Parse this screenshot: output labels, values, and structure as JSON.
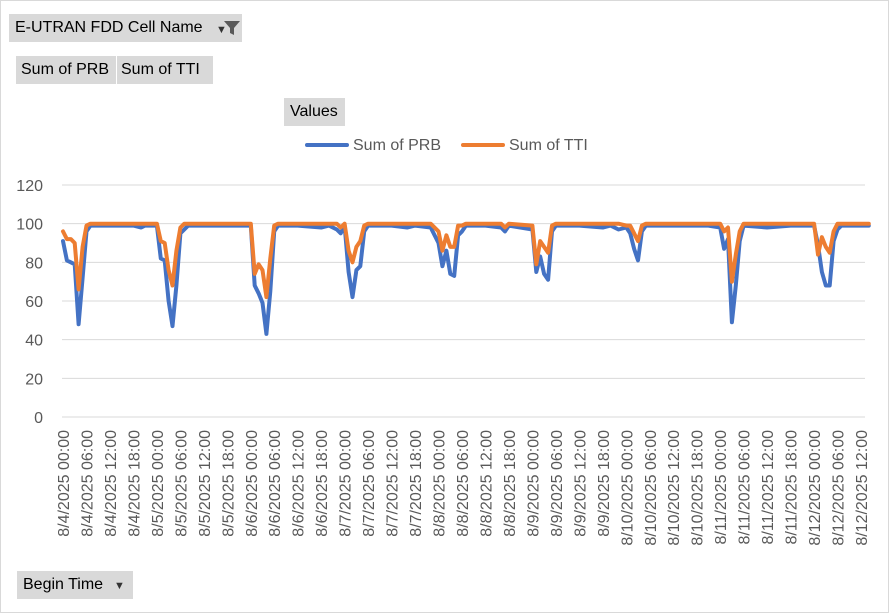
{
  "filter": {
    "field_label": "E-UTRAN FDD Cell Name"
  },
  "value_fields": [
    "Sum of PRB",
    "Sum of TTI"
  ],
  "values_label": "Values",
  "axis_field": {
    "label": "Begin Time"
  },
  "colors": {
    "prb": "#4472c4",
    "tti": "#ed7d31",
    "grid": "#d9d9d9",
    "button": "#d9d9d9"
  },
  "icons": {
    "filter": "funnel-icon",
    "dropdown": "dropdown-arrow-icon"
  },
  "chart_data": {
    "type": "line",
    "title": "",
    "xlabel": "",
    "ylabel": "",
    "ylim": [
      0,
      120
    ],
    "yticks": [
      0,
      20,
      40,
      60,
      80,
      100,
      120
    ],
    "grid": true,
    "legend": "top-center",
    "xtick_labels": [
      "8/4/2025 00:00",
      "8/4/2025 06:00",
      "8/4/2025 12:00",
      "8/4/2025 18:00",
      "8/5/2025 00:00",
      "8/5/2025 06:00",
      "8/5/2025 12:00",
      "8/5/2025 18:00",
      "8/6/2025 00:00",
      "8/6/2025 06:00",
      "8/6/2025 12:00",
      "8/6/2025 18:00",
      "8/7/2025 00:00",
      "8/7/2025 06:00",
      "8/7/2025 12:00",
      "8/7/2025 18:00",
      "8/8/2025 00:00",
      "8/8/2025 06:00",
      "8/8/2025 12:00",
      "8/8/2025 18:00",
      "8/9/2025 00:00",
      "8/9/2025 06:00",
      "8/9/2025 12:00",
      "8/9/2025 18:00",
      "8/10/2025 00:00",
      "8/10/2025 06:00",
      "8/10/2025 12:00",
      "8/10/2025 18:00",
      "8/11/2025 00:00",
      "8/11/2025 06:00",
      "8/11/2025 12:00",
      "8/11/2025 18:00",
      "8/12/2025 00:00",
      "8/12/2025 06:00",
      "8/12/2025 12:00"
    ],
    "series": [
      {
        "name": "Sum of PRB",
        "points": [
          [
            "8/4/2025 00:00",
            91
          ],
          [
            "8/4/2025 01:00",
            81
          ],
          [
            "8/4/2025 02:00",
            80
          ],
          [
            "8/4/2025 03:00",
            79
          ],
          [
            "8/4/2025 04:00",
            48
          ],
          [
            "8/4/2025 05:00",
            72
          ],
          [
            "8/4/2025 06:00",
            96
          ],
          [
            "8/4/2025 07:00",
            99
          ],
          [
            "8/4/2025 08:00",
            99
          ],
          [
            "8/4/2025 12:00",
            99
          ],
          [
            "8/4/2025 18:00",
            99
          ],
          [
            "8/4/2025 20:00",
            98
          ],
          [
            "8/4/2025 21:00",
            99
          ],
          [
            "8/5/2025 00:00",
            99
          ],
          [
            "8/5/2025 01:00",
            82
          ],
          [
            "8/5/2025 02:00",
            81
          ],
          [
            "8/5/2025 03:00",
            60
          ],
          [
            "8/5/2025 04:00",
            47
          ],
          [
            "8/5/2025 05:00",
            68
          ],
          [
            "8/5/2025 06:00",
            95
          ],
          [
            "8/5/2025 07:00",
            97
          ],
          [
            "8/5/2025 08:00",
            99
          ],
          [
            "8/5/2025 12:00",
            99
          ],
          [
            "8/5/2025 18:00",
            99
          ],
          [
            "8/5/2025 20:00",
            99
          ],
          [
            "8/6/2025 00:00",
            99
          ],
          [
            "8/6/2025 01:00",
            68
          ],
          [
            "8/6/2025 02:00",
            64
          ],
          [
            "8/6/2025 03:00",
            59
          ],
          [
            "8/6/2025 04:00",
            43
          ],
          [
            "8/6/2025 05:00",
            65
          ],
          [
            "8/6/2025 06:00",
            96
          ],
          [
            "8/6/2025 07:00",
            99
          ],
          [
            "8/6/2025 12:00",
            99
          ],
          [
            "8/6/2025 18:00",
            98
          ],
          [
            "8/6/2025 20:00",
            99
          ],
          [
            "8/6/2025 22:00",
            97
          ],
          [
            "8/6/2025 23:00",
            95
          ],
          [
            "8/7/2025 00:00",
            99
          ],
          [
            "8/7/2025 01:00",
            75
          ],
          [
            "8/7/2025 02:00",
            62
          ],
          [
            "8/7/2025 03:00",
            76
          ],
          [
            "8/7/2025 04:00",
            78
          ],
          [
            "8/7/2025 05:00",
            96
          ],
          [
            "8/7/2025 06:00",
            99
          ],
          [
            "8/7/2025 12:00",
            99
          ],
          [
            "8/7/2025 16:00",
            98
          ],
          [
            "8/7/2025 18:00",
            99
          ],
          [
            "8/7/2025 22:00",
            98
          ],
          [
            "8/8/2025 00:00",
            90
          ],
          [
            "8/8/2025 01:00",
            78
          ],
          [
            "8/8/2025 02:00",
            86
          ],
          [
            "8/8/2025 03:00",
            74
          ],
          [
            "8/8/2025 04:00",
            73
          ],
          [
            "8/8/2025 05:00",
            94
          ],
          [
            "8/8/2025 06:00",
            96
          ],
          [
            "8/8/2025 07:00",
            99
          ],
          [
            "8/8/2025 12:00",
            99
          ],
          [
            "8/8/2025 16:00",
            98
          ],
          [
            "8/8/2025 17:00",
            96
          ],
          [
            "8/8/2025 18:00",
            99
          ],
          [
            "8/9/2025 00:00",
            97
          ],
          [
            "8/9/2025 01:00",
            75
          ],
          [
            "8/9/2025 02:00",
            83
          ],
          [
            "8/9/2025 03:00",
            74
          ],
          [
            "8/9/2025 04:00",
            71
          ],
          [
            "8/9/2025 05:00",
            96
          ],
          [
            "8/9/2025 06:00",
            99
          ],
          [
            "8/9/2025 12:00",
            99
          ],
          [
            "8/9/2025 18:00",
            98
          ],
          [
            "8/9/2025 20:00",
            99
          ],
          [
            "8/9/2025 22:00",
            97
          ],
          [
            "8/10/2025 00:00",
            98
          ],
          [
            "8/10/2025 01:00",
            95
          ],
          [
            "8/10/2025 02:00",
            87
          ],
          [
            "8/10/2025 03:00",
            81
          ],
          [
            "8/10/2025 04:00",
            96
          ],
          [
            "8/10/2025 05:00",
            99
          ],
          [
            "8/10/2025 12:00",
            99
          ],
          [
            "8/10/2025 18:00",
            99
          ],
          [
            "8/10/2025 21:00",
            99
          ],
          [
            "8/11/2025 00:00",
            98
          ],
          [
            "8/11/2025 01:00",
            87
          ],
          [
            "8/11/2025 02:00",
            92
          ],
          [
            "8/11/2025 03:00",
            49
          ],
          [
            "8/11/2025 04:00",
            68
          ],
          [
            "8/11/2025 05:00",
            91
          ],
          [
            "8/11/2025 06:00",
            99
          ],
          [
            "8/11/2025 12:00",
            98
          ],
          [
            "8/11/2025 18:00",
            99
          ],
          [
            "8/11/2025 22:00",
            99
          ],
          [
            "8/12/2025 00:00",
            99
          ],
          [
            "8/12/2025 01:00",
            89
          ],
          [
            "8/12/2025 02:00",
            75
          ],
          [
            "8/12/2025 03:00",
            68
          ],
          [
            "8/12/2025 04:00",
            68
          ],
          [
            "8/12/2025 05:00",
            91
          ],
          [
            "8/12/2025 06:00",
            97
          ],
          [
            "8/12/2025 07:00",
            99
          ],
          [
            "8/12/2025 12:00",
            99
          ],
          [
            "8/12/2025 14:00",
            99
          ]
        ]
      },
      {
        "name": "Sum of TTI",
        "points": [
          [
            "8/4/2025 00:00",
            96
          ],
          [
            "8/4/2025 01:00",
            92
          ],
          [
            "8/4/2025 02:00",
            92
          ],
          [
            "8/4/2025 03:00",
            90
          ],
          [
            "8/4/2025 04:00",
            66
          ],
          [
            "8/4/2025 05:00",
            88
          ],
          [
            "8/4/2025 06:00",
            99
          ],
          [
            "8/4/2025 07:00",
            100
          ],
          [
            "8/4/2025 12:00",
            100
          ],
          [
            "8/4/2025 18:00",
            100
          ],
          [
            "8/4/2025 21:00",
            100
          ],
          [
            "8/5/2025 00:00",
            100
          ],
          [
            "8/5/2025 01:00",
            91
          ],
          [
            "8/5/2025 02:00",
            90
          ],
          [
            "8/5/2025 03:00",
            76
          ],
          [
            "8/5/2025 04:00",
            68
          ],
          [
            "8/5/2025 05:00",
            86
          ],
          [
            "8/5/2025 06:00",
            98
          ],
          [
            "8/5/2025 07:00",
            100
          ],
          [
            "8/5/2025 12:00",
            100
          ],
          [
            "8/5/2025 18:00",
            100
          ],
          [
            "8/5/2025 20:00",
            100
          ],
          [
            "8/6/2025 00:00",
            100
          ],
          [
            "8/6/2025 01:00",
            74
          ],
          [
            "8/6/2025 02:00",
            79
          ],
          [
            "8/6/2025 03:00",
            76
          ],
          [
            "8/6/2025 04:00",
            62
          ],
          [
            "8/6/2025 05:00",
            82
          ],
          [
            "8/6/2025 06:00",
            99
          ],
          [
            "8/6/2025 07:00",
            100
          ],
          [
            "8/6/2025 12:00",
            100
          ],
          [
            "8/6/2025 18:00",
            100
          ],
          [
            "8/6/2025 22:00",
            100
          ],
          [
            "8/6/2025 23:00",
            98
          ],
          [
            "8/7/2025 00:00",
            100
          ],
          [
            "8/7/2025 01:00",
            86
          ],
          [
            "8/7/2025 02:00",
            80
          ],
          [
            "8/7/2025 03:00",
            88
          ],
          [
            "8/7/2025 04:00",
            91
          ],
          [
            "8/7/2025 05:00",
            99
          ],
          [
            "8/7/2025 06:00",
            100
          ],
          [
            "8/7/2025 12:00",
            100
          ],
          [
            "8/7/2025 18:00",
            100
          ],
          [
            "8/7/2025 22:00",
            100
          ],
          [
            "8/8/2025 00:00",
            96
          ],
          [
            "8/8/2025 01:00",
            86
          ],
          [
            "8/8/2025 02:00",
            94
          ],
          [
            "8/8/2025 03:00",
            88
          ],
          [
            "8/8/2025 04:00",
            88
          ],
          [
            "8/8/2025 05:00",
            99
          ],
          [
            "8/8/2025 06:00",
            99
          ],
          [
            "8/8/2025 07:00",
            100
          ],
          [
            "8/8/2025 12:00",
            100
          ],
          [
            "8/8/2025 16:00",
            100
          ],
          [
            "8/8/2025 17:00",
            98
          ],
          [
            "8/8/2025 18:00",
            100
          ],
          [
            "8/9/2025 00:00",
            99
          ],
          [
            "8/9/2025 01:00",
            79
          ],
          [
            "8/9/2025 02:00",
            91
          ],
          [
            "8/9/2025 03:00",
            88
          ],
          [
            "8/9/2025 04:00",
            85
          ],
          [
            "8/9/2025 05:00",
            99
          ],
          [
            "8/9/2025 06:00",
            100
          ],
          [
            "8/9/2025 12:00",
            100
          ],
          [
            "8/9/2025 18:00",
            100
          ],
          [
            "8/9/2025 22:00",
            100
          ],
          [
            "8/10/2025 00:00",
            99
          ],
          [
            "8/10/2025 01:00",
            99
          ],
          [
            "8/10/2025 02:00",
            95
          ],
          [
            "8/10/2025 03:00",
            91
          ],
          [
            "8/10/2025 04:00",
            99
          ],
          [
            "8/10/2025 05:00",
            100
          ],
          [
            "8/10/2025 12:00",
            100
          ],
          [
            "8/10/2025 18:00",
            100
          ],
          [
            "8/10/2025 21:00",
            100
          ],
          [
            "8/11/2025 00:00",
            100
          ],
          [
            "8/11/2025 01:00",
            96
          ],
          [
            "8/11/2025 02:00",
            98
          ],
          [
            "8/11/2025 03:00",
            70
          ],
          [
            "8/11/2025 04:00",
            84
          ],
          [
            "8/11/2025 05:00",
            96
          ],
          [
            "8/11/2025 06:00",
            100
          ],
          [
            "8/11/2025 12:00",
            100
          ],
          [
            "8/11/2025 18:00",
            100
          ],
          [
            "8/11/2025 22:00",
            100
          ],
          [
            "8/12/2025 00:00",
            100
          ],
          [
            "8/12/2025 01:00",
            84
          ],
          [
            "8/12/2025 02:00",
            93
          ],
          [
            "8/12/2025 03:00",
            88
          ],
          [
            "8/12/2025 04:00",
            85
          ],
          [
            "8/12/2025 05:00",
            96
          ],
          [
            "8/12/2025 06:00",
            100
          ],
          [
            "8/12/2025 12:00",
            100
          ],
          [
            "8/12/2025 14:00",
            100
          ]
        ]
      }
    ]
  }
}
